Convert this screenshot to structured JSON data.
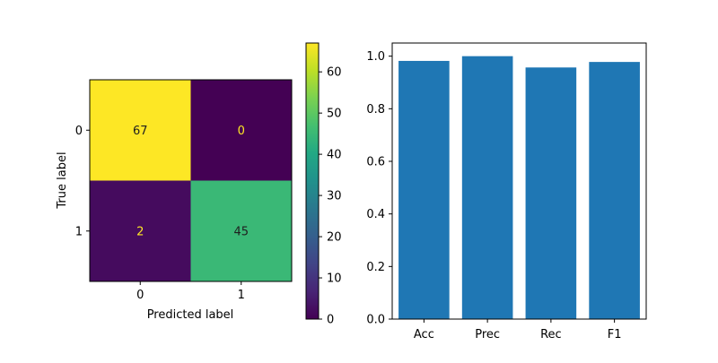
{
  "chart_data": [
    {
      "type": "heatmap",
      "title": "",
      "xlabel": "Predicted label",
      "ylabel": "True label",
      "x_categories": [
        "0",
        "1"
      ],
      "y_categories": [
        "0",
        "1"
      ],
      "matrix": [
        [
          67,
          0
        ],
        [
          2,
          45
        ]
      ],
      "colormap": "viridis",
      "colorbar": {
        "min": 0,
        "max": 67,
        "ticks": [
          0,
          10,
          20,
          30,
          40,
          50,
          60
        ]
      },
      "grid": false
    },
    {
      "type": "bar",
      "title": "",
      "xlabel": "",
      "ylabel": "",
      "categories": [
        "Acc",
        "Prec",
        "Rec",
        "F1"
      ],
      "values": [
        0.982,
        1.0,
        0.957,
        0.978
      ],
      "bar_color": "#1f77b4",
      "ylim": [
        0,
        1.05
      ],
      "yticks": [
        "0.0",
        "0.2",
        "0.4",
        "0.6",
        "0.8",
        "1.0"
      ],
      "grid": false
    }
  ]
}
